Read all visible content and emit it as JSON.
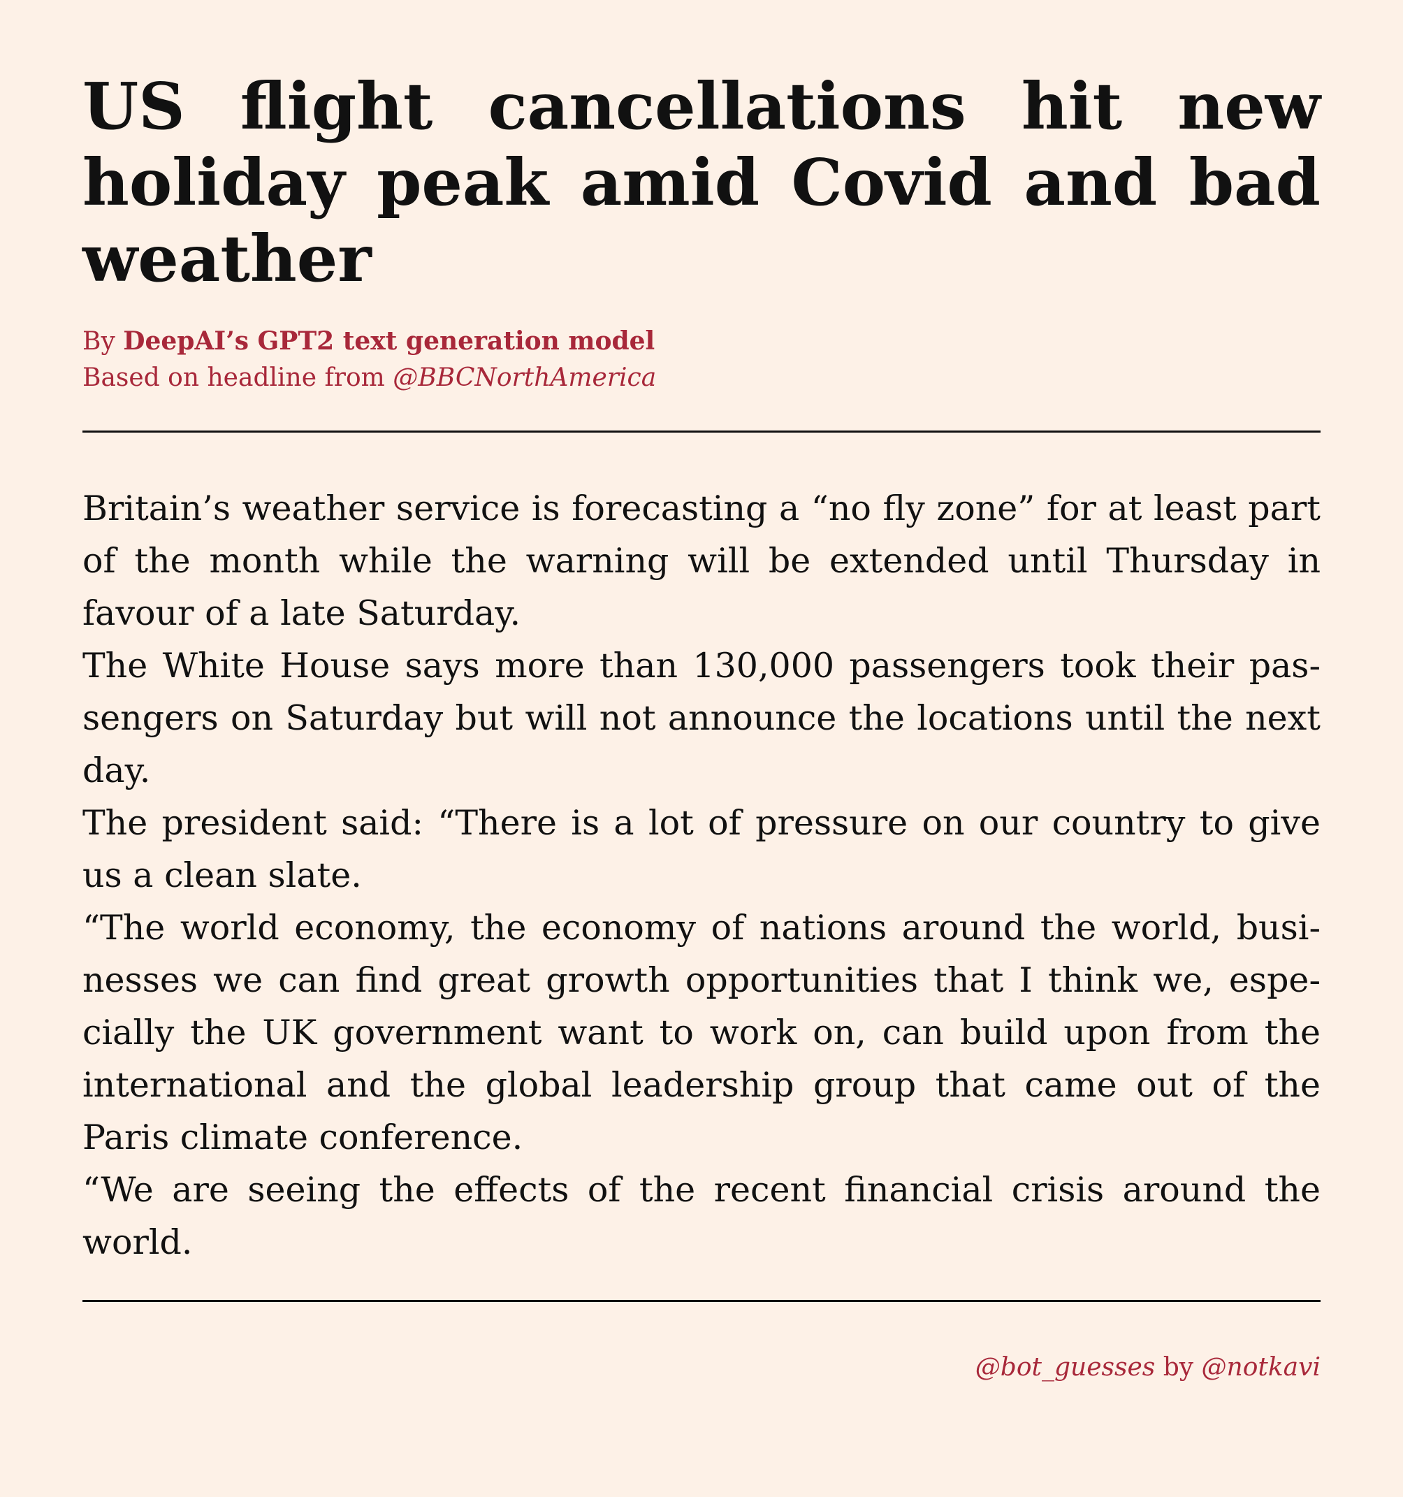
{
  "article": {
    "headline": "US flight cancellations hit new hol­iday peak amid Covid and bad weather",
    "byline_prefix": "By ",
    "byline_author": "DeepAI’s GPT2 text generation model",
    "source_prefix": "Based on headline from ",
    "source_handle": "@BBCNorthAmerica",
    "paragraphs": [
      "Britain’s weather service is forecasting a “no fly zone” for at least part of the month while the warning will be extended until Thursday in favour of a late Saturday.",
      "The White House says more than 130,000 passengers took their pas­sengers on Saturday but will not announce the locations until the next day.",
      "The president said: “There is a lot of pressure on our country to give us a clean slate.",
      "“The world economy, the economy of nations around the world, busi­nesses we can find great growth opportunities that I think we, espe­cially the UK government want to work on, can build upon from the international and the global leadership group that came out of the Paris climate conference.",
      "“We are seeing the effects of the recent financial crisis around the world."
    ]
  },
  "footer": {
    "bot_handle": "@bot_guesses",
    "by_text": " by ",
    "author_handle": "@notkavi"
  }
}
